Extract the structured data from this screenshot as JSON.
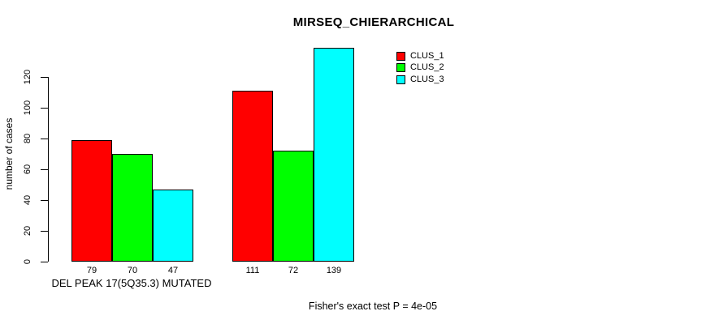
{
  "chart_data": {
    "type": "bar",
    "title": "MIRSEQ_CHIERARCHICAL",
    "ylabel": "number of cases",
    "xlabel": "DEL PEAK 17(5Q35.3) MUTATED",
    "annotation": "Fisher's exact test P = 4e-05",
    "ylim": [
      0,
      120
    ],
    "yticks": [
      0,
      20,
      40,
      60,
      80,
      100,
      120
    ],
    "grid": false,
    "legend_position": "top-right",
    "series": [
      {
        "name": "CLUS_1",
        "color": "#ff0000"
      },
      {
        "name": "CLUS_2",
        "color": "#00ff00"
      },
      {
        "name": "CLUS_3",
        "color": "#00ffff"
      }
    ],
    "groups": [
      {
        "label": "DEL PEAK 17(5Q35.3) MUTATED",
        "values": [
          79,
          70,
          47
        ]
      },
      {
        "label": "",
        "values": [
          111,
          72,
          139
        ]
      }
    ],
    "bar_labels": [
      [
        "79",
        "70",
        "47"
      ],
      [
        "111",
        "72",
        "139"
      ]
    ]
  }
}
